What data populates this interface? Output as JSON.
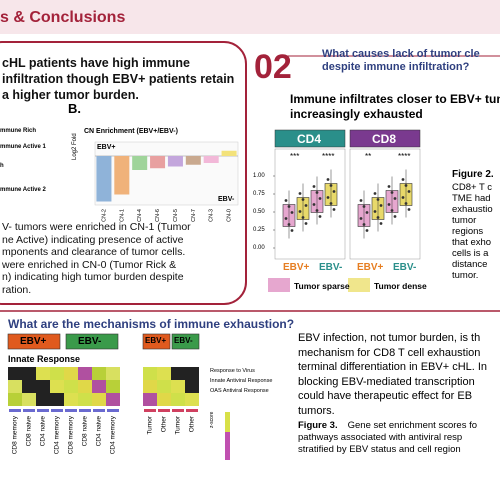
{
  "header": {
    "title": "s & Conclusions"
  },
  "section1": {
    "heading": [
      "cHL patients have high immune",
      "infiltration though EBV+ patients retain",
      "a higher tumor burden."
    ],
    "panel_label": "B.",
    "row_labels": [
      "mmune Rich",
      "mmune Active 1",
      "h",
      "mmune Active 2"
    ],
    "paragraph": [
      "V- tumors were enriched in CN-1 (Tumor",
      "ne Active) indicating presence of active",
      "mponents and clearance of tumor cells.",
      "were enriched in CN-0 (Tumor Rick &",
      "n) indicating high tumor burden despite",
      "ration."
    ]
  },
  "chart_data": {
    "type": "bar",
    "title": "CN Enrichment (EBV+/EBV-)",
    "y_label": "Log2 Fold",
    "annotations": [
      "EBV+",
      "EBV-"
    ],
    "categories": [
      "CN-2",
      "CN-1",
      "CN-4",
      "CN-6",
      "CN-5",
      "CN-7",
      "CN-3",
      "CN-0"
    ],
    "values": [
      -1.3,
      -1.1,
      -0.4,
      -0.35,
      -0.3,
      -0.25,
      -0.2,
      0.15
    ],
    "colors": [
      "#8fb3d9",
      "#f0b27a",
      "#9fd49a",
      "#e8a0a0",
      "#c3a6dc",
      "#c9a98f",
      "#f2b8d8",
      "#f3e27a"
    ],
    "ylim": [
      -1.4,
      0.4
    ]
  },
  "section2": {
    "number": "02",
    "question": [
      "What causes lack of tumor cle",
      "despite immune infiltration?"
    ],
    "subtitle": [
      "Immune infiltrates closer to EBV+ tum",
      "increasingly exhausted"
    ],
    "panels": [
      "CD4",
      "CD8"
    ],
    "yticks": [
      "1.00",
      "0.75",
      "0.50",
      "0.25",
      "0.00"
    ],
    "significance": [
      "***",
      "****",
      "**",
      "****"
    ],
    "groups": [
      "EBV+",
      "EBV-",
      "EBV+",
      "EBV-"
    ],
    "legend": [
      "Tumor sparse",
      "Tumor dense"
    ],
    "caption_title": "Figure 2.",
    "caption": [
      "CD8+ T c",
      "TME had",
      "exhaustio",
      "tumor",
      "regions",
      "that exho",
      "cells is a",
      "distance",
      "tumor."
    ]
  },
  "section3": {
    "heading": "What are the mechanisms of immune exhaustion?",
    "groups": [
      "EBV+",
      "EBV-",
      "EBV+",
      "EBV-"
    ],
    "block_title": "Innate Response",
    "row_labels": [
      "Response to Virus",
      "Innate Antiviral Response",
      "OAS Antiviral Response"
    ],
    "legend_title": "z-score",
    "columns": [
      "CD8 memory",
      "CD8 naive",
      "CD4 naive",
      "CD4 memory",
      "CD8 memory",
      "CD8 naive",
      "CD4 naive",
      "CD4 memory",
      "Tumor",
      "Other",
      "Tumor",
      "Other"
    ],
    "paragraph": [
      "EBV infection, not tumor burden, is th",
      "mechanism for CD8 T cell exhaustion",
      "terminal differentiation in EBV+ cHL. In",
      "blocking EBV-mediated transcription",
      "could have therapeutic effect for EB",
      "tumors."
    ],
    "caption_title": "Figure 3.",
    "caption": [
      " Gene set enrichment scores fo",
      "pathways associated with antiviral resp",
      "stratified by EBV status and cell region"
    ]
  }
}
